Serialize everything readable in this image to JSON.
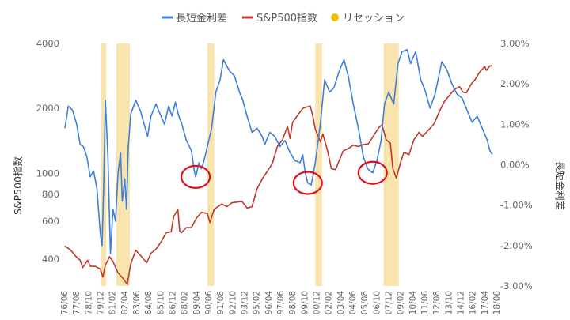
{
  "chart_data": {
    "type": "line",
    "legend": {
      "placement": "top",
      "items": [
        {
          "label": "長短金利差",
          "color": "#3f7fd8",
          "marker": "line"
        },
        {
          "label": "S&P500指数",
          "color": "#c0392b",
          "marker": "line"
        },
        {
          "label": "リセッション",
          "color": "#f2c200",
          "marker": "dot"
        }
      ]
    },
    "y_left": {
      "label": "S&P500指数",
      "scale": "log",
      "range": [
        300,
        4000
      ],
      "ticks": [
        {
          "value": 400,
          "label": "400"
        },
        {
          "value": 600,
          "label": "600"
        },
        {
          "value": 800,
          "label": "800"
        },
        {
          "value": 1000,
          "label": "1000"
        },
        {
          "value": 2000,
          "label": "2000"
        },
        {
          "value": 4000,
          "label": "4000"
        }
      ]
    },
    "y_right": {
      "label": "長短金利差",
      "scale": "linear",
      "range": [
        -3,
        3
      ],
      "ticks": [
        {
          "value": 3,
          "label": "3.00%"
        },
        {
          "value": 2,
          "label": "2.00%"
        },
        {
          "value": 1,
          "label": "1.00%"
        },
        {
          "value": 0,
          "label": "0.00%"
        },
        {
          "value": -1,
          "label": "-1.00%"
        },
        {
          "value": -2,
          "label": "-2.00%"
        },
        {
          "value": -3,
          "label": "-3.00%"
        }
      ]
    },
    "x_axis": {
      "range": [
        "1976/06",
        "2018/09"
      ],
      "tick_labels": [
        "76/06",
        "77/08",
        "78/10",
        "79/12",
        "81/02",
        "82/04",
        "83/06",
        "84/08",
        "85/10",
        "86/12",
        "88/02",
        "89/04",
        "90/06",
        "91/08",
        "92/10",
        "93/12",
        "95/02",
        "96/04",
        "97/06",
        "98/08",
        "99/10",
        "00/12",
        "02/02",
        "03/04",
        "04/06",
        "05/08",
        "06/10",
        "07/12",
        "09/02",
        "10/04",
        "11/06",
        "12/08",
        "13/10",
        "14/12",
        "16/02",
        "17/04",
        "18/06"
      ]
    },
    "recessions": [
      [
        "1980/01",
        "1980/07"
      ],
      [
        "1981/07",
        "1982/11"
      ],
      [
        "1990/07",
        "1991/03"
      ],
      [
        "2001/03",
        "2001/11"
      ],
      [
        "2007/12",
        "2009/06"
      ]
    ],
    "highlight_circles": [
      "1989/05",
      "2000/06",
      "2006/11"
    ],
    "series": [
      {
        "name": "長短金利差",
        "axis": "right",
        "color": "#3f7fd8",
        "points": [
          [
            "1976/06",
            0.9
          ],
          [
            "1976/10",
            1.45
          ],
          [
            "1977/03",
            1.35
          ],
          [
            "1977/08",
            1.0
          ],
          [
            "1977/12",
            0.5
          ],
          [
            "1978/04",
            0.45
          ],
          [
            "1978/08",
            0.2
          ],
          [
            "1978/12",
            -0.3
          ],
          [
            "1979/04",
            -0.15
          ],
          [
            "1979/08",
            -0.6
          ],
          [
            "1979/12",
            -1.7
          ],
          [
            "1980/02",
            -2.0
          ],
          [
            "1980/04",
            -0.5
          ],
          [
            "1980/06",
            1.6
          ],
          [
            "1980/09",
            0.2
          ],
          [
            "1980/12",
            -2.2
          ],
          [
            "1981/03",
            -1.1
          ],
          [
            "1981/06",
            -1.4
          ],
          [
            "1981/09",
            -0.2
          ],
          [
            "1981/12",
            0.3
          ],
          [
            "1982/02",
            -0.9
          ],
          [
            "1982/05",
            -0.35
          ],
          [
            "1982/07",
            -1.1
          ],
          [
            "1982/09",
            0.4
          ],
          [
            "1982/12",
            1.25
          ],
          [
            "1983/06",
            1.6
          ],
          [
            "1983/12",
            1.3
          ],
          [
            "1984/04",
            1.0
          ],
          [
            "1984/08",
            0.7
          ],
          [
            "1984/12",
            1.2
          ],
          [
            "1985/06",
            1.5
          ],
          [
            "1985/10",
            1.3
          ],
          [
            "1986/04",
            1.0
          ],
          [
            "1986/09",
            1.45
          ],
          [
            "1987/01",
            1.2
          ],
          [
            "1987/05",
            1.55
          ],
          [
            "1987/09",
            1.2
          ],
          [
            "1987/12",
            1.05
          ],
          [
            "1988/06",
            0.6
          ],
          [
            "1988/12",
            0.35
          ],
          [
            "1989/03",
            -0.1
          ],
          [
            "1989/05",
            -0.3
          ],
          [
            "1989/09",
            0.05
          ],
          [
            "1989/12",
            -0.1
          ],
          [
            "1990/03",
            0.1
          ],
          [
            "1990/08",
            0.55
          ],
          [
            "1990/12",
            0.9
          ],
          [
            "1991/05",
            1.8
          ],
          [
            "1991/10",
            2.1
          ],
          [
            "1992/02",
            2.6
          ],
          [
            "1992/07",
            2.4
          ],
          [
            "1992/10",
            2.3
          ],
          [
            "1993/03",
            2.2
          ],
          [
            "1993/09",
            1.8
          ],
          [
            "1994/01",
            1.6
          ],
          [
            "1994/06",
            1.2
          ],
          [
            "1994/12",
            0.8
          ],
          [
            "1995/06",
            0.9
          ],
          [
            "1995/12",
            0.7
          ],
          [
            "1996/03",
            0.5
          ],
          [
            "1996/09",
            0.8
          ],
          [
            "1997/03",
            0.7
          ],
          [
            "1997/09",
            0.45
          ],
          [
            "1998/03",
            0.6
          ],
          [
            "1998/09",
            0.3
          ],
          [
            "1999/03",
            0.1
          ],
          [
            "1999/09",
            0.05
          ],
          [
            "1999/12",
            0.25
          ],
          [
            "2000/03",
            -0.2
          ],
          [
            "2000/06",
            -0.45
          ],
          [
            "2000/10",
            -0.5
          ],
          [
            "2000/12",
            -0.3
          ],
          [
            "2001/03",
            0.05
          ],
          [
            "2001/09",
            1.0
          ],
          [
            "2002/02",
            2.1
          ],
          [
            "2002/08",
            1.8
          ],
          [
            "2003/01",
            1.9
          ],
          [
            "2003/07",
            2.3
          ],
          [
            "2004/01",
            2.6
          ],
          [
            "2004/06",
            2.2
          ],
          [
            "2004/12",
            1.5
          ],
          [
            "2005/06",
            0.9
          ],
          [
            "2005/12",
            0.2
          ],
          [
            "2006/05",
            -0.1
          ],
          [
            "2006/11",
            -0.2
          ],
          [
            "2007/04",
            0.1
          ],
          [
            "2007/09",
            0.6
          ],
          [
            "2008/01",
            1.5
          ],
          [
            "2008/06",
            1.8
          ],
          [
            "2008/12",
            1.5
          ],
          [
            "2009/05",
            2.5
          ],
          [
            "2009/10",
            2.8
          ],
          [
            "2010/04",
            2.85
          ],
          [
            "2010/08",
            2.5
          ],
          [
            "2011/02",
            2.8
          ],
          [
            "2011/08",
            2.1
          ],
          [
            "2012/01",
            1.85
          ],
          [
            "2012/07",
            1.4
          ],
          [
            "2013/01",
            1.75
          ],
          [
            "2013/09",
            2.55
          ],
          [
            "2014/03",
            2.35
          ],
          [
            "2014/09",
            2.0
          ],
          [
            "2015/03",
            1.75
          ],
          [
            "2015/09",
            1.65
          ],
          [
            "2016/03",
            1.35
          ],
          [
            "2016/09",
            1.05
          ],
          [
            "2017/03",
            1.2
          ],
          [
            "2017/09",
            0.9
          ],
          [
            "2018/03",
            0.6
          ],
          [
            "2018/06",
            0.35
          ],
          [
            "2018/09",
            0.25
          ]
        ]
      },
      {
        "name": "S&P500指数",
        "axis": "left",
        "color": "#c0392b",
        "points": [
          [
            "1976/06",
            460
          ],
          [
            "1977/01",
            440
          ],
          [
            "1977/06",
            415
          ],
          [
            "1977/12",
            395
          ],
          [
            "1978/03",
            365
          ],
          [
            "1978/09",
            395
          ],
          [
            "1978/12",
            370
          ],
          [
            "1979/06",
            370
          ],
          [
            "1979/12",
            360
          ],
          [
            "1980/03",
            330
          ],
          [
            "1980/06",
            375
          ],
          [
            "1980/11",
            410
          ],
          [
            "1981/03",
            390
          ],
          [
            "1981/09",
            345
          ],
          [
            "1982/03",
            325
          ],
          [
            "1982/08",
            305
          ],
          [
            "1982/12",
            380
          ],
          [
            "1983/06",
            440
          ],
          [
            "1984/01",
            410
          ],
          [
            "1984/07",
            385
          ],
          [
            "1984/12",
            425
          ],
          [
            "1985/06",
            445
          ],
          [
            "1985/12",
            480
          ],
          [
            "1986/06",
            530
          ],
          [
            "1986/12",
            535
          ],
          [
            "1987/03",
            630
          ],
          [
            "1987/08",
            680
          ],
          [
            "1987/10",
            540
          ],
          [
            "1987/12",
            530
          ],
          [
            "1988/06",
            560
          ],
          [
            "1988/12",
            560
          ],
          [
            "1989/06",
            620
          ],
          [
            "1989/12",
            660
          ],
          [
            "1990/07",
            650
          ],
          [
            "1990/10",
            590
          ],
          [
            "1991/03",
            680
          ],
          [
            "1991/12",
            720
          ],
          [
            "1992/06",
            700
          ],
          [
            "1992/12",
            730
          ],
          [
            "1993/06",
            735
          ],
          [
            "1993/12",
            740
          ],
          [
            "1994/06",
            690
          ],
          [
            "1994/12",
            700
          ],
          [
            "1995/06",
            850
          ],
          [
            "1995/12",
            940
          ],
          [
            "1996/06",
            1020
          ],
          [
            "1996/12",
            1110
          ],
          [
            "1997/06",
            1330
          ],
          [
            "1997/12",
            1430
          ],
          [
            "1998/06",
            1650
          ],
          [
            "1998/09",
            1450
          ],
          [
            "1998/12",
            1720
          ],
          [
            "1999/06",
            1860
          ],
          [
            "1999/12",
            2000
          ],
          [
            "2000/03",
            2020
          ],
          [
            "2000/09",
            2050
          ],
          [
            "2000/12",
            1850
          ],
          [
            "2001/03",
            1600
          ],
          [
            "2001/09",
            1400
          ],
          [
            "2001/12",
            1520
          ],
          [
            "2002/06",
            1250
          ],
          [
            "2002/10",
            1050
          ],
          [
            "2003/03",
            1040
          ],
          [
            "2003/12",
            1270
          ],
          [
            "2004/06",
            1300
          ],
          [
            "2004/12",
            1350
          ],
          [
            "2005/06",
            1330
          ],
          [
            "2005/12",
            1360
          ],
          [
            "2006/06",
            1370
          ],
          [
            "2006/12",
            1490
          ],
          [
            "2007/06",
            1620
          ],
          [
            "2007/10",
            1680
          ],
          [
            "2008/03",
            1430
          ],
          [
            "2008/08",
            1380
          ],
          [
            "2008/11",
            1050
          ],
          [
            "2009/03",
            950
          ],
          [
            "2009/08",
            1120
          ],
          [
            "2009/12",
            1250
          ],
          [
            "2010/06",
            1220
          ],
          [
            "2010/12",
            1430
          ],
          [
            "2011/06",
            1550
          ],
          [
            "2011/10",
            1480
          ],
          [
            "2012/06",
            1600
          ],
          [
            "2012/12",
            1700
          ],
          [
            "2013/06",
            1930
          ],
          [
            "2013/12",
            2150
          ],
          [
            "2014/06",
            2300
          ],
          [
            "2014/12",
            2450
          ],
          [
            "2015/06",
            2520
          ],
          [
            "2015/10",
            2380
          ],
          [
            "2016/02",
            2360
          ],
          [
            "2016/08",
            2600
          ],
          [
            "2016/12",
            2700
          ],
          [
            "2017/06",
            2950
          ],
          [
            "2017/12",
            3120
          ],
          [
            "2018/02",
            3000
          ],
          [
            "2018/06",
            3150
          ],
          [
            "2018/09",
            3150
          ]
        ]
      }
    ]
  }
}
